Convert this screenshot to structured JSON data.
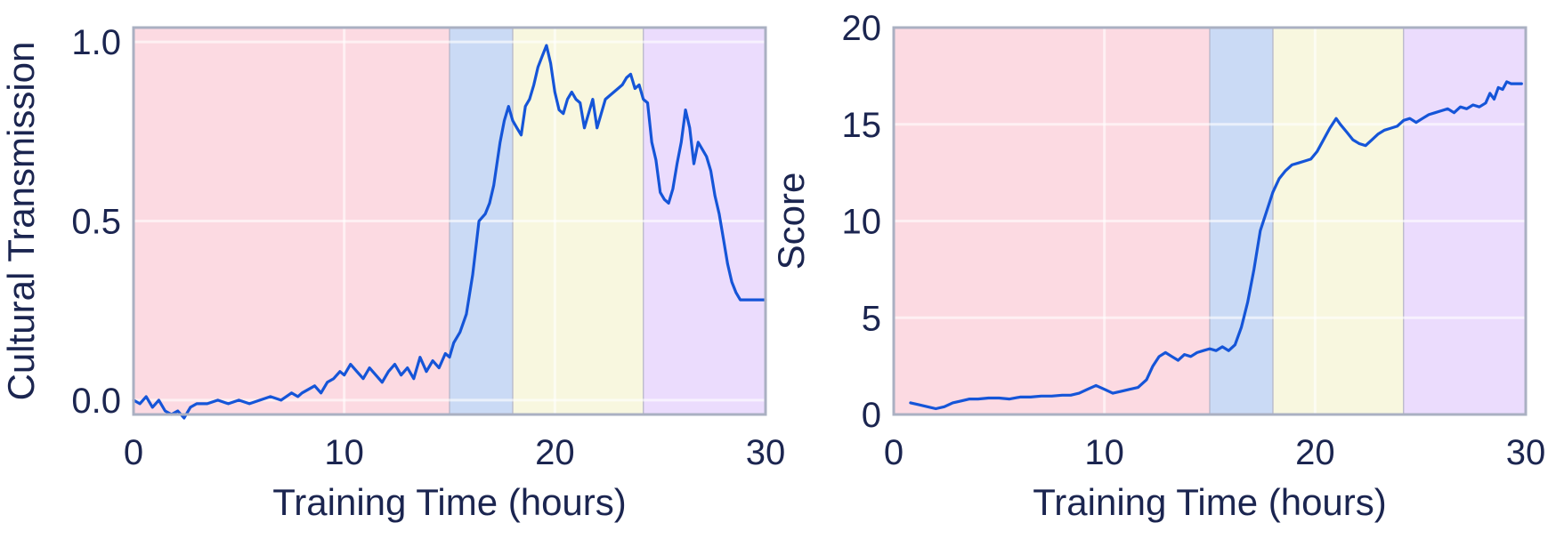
{
  "chart_data": [
    {
      "type": "line",
      "xlabel": "Training Time (hours)",
      "ylabel": "Cultural Transmission",
      "xlim": [
        0,
        30
      ],
      "ylim": [
        -0.04,
        1.04
      ],
      "xticks": [
        0,
        10,
        20,
        30
      ],
      "yticks": [
        0.0,
        0.5,
        1.0
      ],
      "xtick_labels": [
        "0",
        "10",
        "20",
        "30"
      ],
      "ytick_labels": [
        "0.0",
        "0.5",
        "1.0"
      ],
      "grid": true,
      "line_color": "#1555d8",
      "phases": [
        {
          "x0": 0,
          "x1": 15.0,
          "color": "#fcdae2"
        },
        {
          "x0": 15.0,
          "x1": 18.0,
          "color": "#cadaf5"
        },
        {
          "x0": 18.0,
          "x1": 24.2,
          "color": "#f8f7df"
        },
        {
          "x0": 24.2,
          "x1": 30,
          "color": "#ebdcfd"
        }
      ],
      "series": [
        {
          "x": [
            0,
            0.3,
            0.6,
            0.9,
            1.2,
            1.5,
            1.8,
            2.1,
            2.4,
            2.7,
            3.0,
            3.5,
            4.0,
            4.5,
            5.0,
            5.5,
            6.0,
            6.5,
            7.0,
            7.5,
            7.8,
            8.0,
            8.3,
            8.6,
            8.9,
            9.2,
            9.5,
            9.8,
            10.0,
            10.3,
            10.6,
            10.9,
            11.2,
            11.5,
            11.8,
            12.1,
            12.4,
            12.7,
            13.0,
            13.3,
            13.6,
            13.9,
            14.2,
            14.5,
            14.8,
            15.0,
            15.2,
            15.5,
            15.8,
            16.1,
            16.4,
            16.7,
            16.9,
            17.1,
            17.4,
            17.6,
            17.8,
            18.0,
            18.2,
            18.4,
            18.6,
            18.8,
            19.0,
            19.2,
            19.4,
            19.6,
            19.8,
            20.0,
            20.2,
            20.4,
            20.6,
            20.8,
            21.0,
            21.2,
            21.4,
            21.6,
            21.8,
            22.0,
            22.2,
            22.4,
            22.6,
            22.8,
            23.0,
            23.2,
            23.4,
            23.6,
            23.8,
            24.0,
            24.2,
            24.4,
            24.6,
            24.8,
            25.0,
            25.2,
            25.4,
            25.6,
            25.8,
            26.0,
            26.2,
            26.4,
            26.6,
            26.8,
            27.0,
            27.2,
            27.4,
            27.6,
            27.8,
            28.0,
            28.2,
            28.4,
            28.6,
            28.8,
            29.0,
            29.2,
            29.4,
            29.7,
            30.0
          ],
          "values": [
            0.0,
            -0.01,
            0.01,
            -0.02,
            0.0,
            -0.03,
            -0.04,
            -0.03,
            -0.05,
            -0.02,
            -0.01,
            -0.01,
            0.0,
            -0.01,
            0.0,
            -0.01,
            0.0,
            0.01,
            0.0,
            0.02,
            0.01,
            0.02,
            0.03,
            0.04,
            0.02,
            0.05,
            0.06,
            0.08,
            0.07,
            0.1,
            0.08,
            0.06,
            0.09,
            0.07,
            0.05,
            0.08,
            0.1,
            0.07,
            0.09,
            0.06,
            0.12,
            0.08,
            0.11,
            0.09,
            0.13,
            0.12,
            0.16,
            0.19,
            0.24,
            0.35,
            0.5,
            0.52,
            0.55,
            0.6,
            0.72,
            0.78,
            0.82,
            0.78,
            0.76,
            0.74,
            0.82,
            0.84,
            0.88,
            0.93,
            0.96,
            0.99,
            0.94,
            0.86,
            0.81,
            0.8,
            0.84,
            0.86,
            0.84,
            0.83,
            0.76,
            0.8,
            0.84,
            0.76,
            0.8,
            0.84,
            0.85,
            0.86,
            0.87,
            0.88,
            0.9,
            0.91,
            0.87,
            0.88,
            0.84,
            0.83,
            0.72,
            0.67,
            0.58,
            0.56,
            0.55,
            0.59,
            0.66,
            0.72,
            0.81,
            0.76,
            0.66,
            0.72,
            0.7,
            0.68,
            0.64,
            0.57,
            0.52,
            0.45,
            0.38,
            0.33,
            0.3,
            0.28,
            0.28,
            0.28,
            0.28,
            0.28,
            0.28
          ]
        }
      ]
    },
    {
      "type": "line",
      "xlabel": "Training Time (hours)",
      "ylabel": "Score",
      "xlim": [
        0,
        30
      ],
      "ylim": [
        0,
        20
      ],
      "xticks": [
        0,
        10,
        20,
        30
      ],
      "yticks": [
        0,
        5,
        10,
        15,
        20
      ],
      "xtick_labels": [
        "0",
        "10",
        "20",
        "30"
      ],
      "ytick_labels": [
        "0",
        "5",
        "10",
        "15",
        "20"
      ],
      "grid": true,
      "line_color": "#1555d8",
      "phases": [
        {
          "x0": 0,
          "x1": 15.0,
          "color": "#fcdae2"
        },
        {
          "x0": 15.0,
          "x1": 18.0,
          "color": "#cadaf5"
        },
        {
          "x0": 18.0,
          "x1": 24.2,
          "color": "#f8f7df"
        },
        {
          "x0": 24.2,
          "x1": 30,
          "color": "#ebdcfd"
        }
      ],
      "series": [
        {
          "x": [
            0.8,
            1.2,
            1.6,
            2.0,
            2.4,
            2.8,
            3.2,
            3.6,
            4.0,
            4.5,
            5.0,
            5.5,
            6.0,
            6.5,
            7.0,
            7.5,
            8.0,
            8.4,
            8.8,
            9.2,
            9.6,
            10.0,
            10.4,
            10.8,
            11.2,
            11.6,
            12.0,
            12.3,
            12.6,
            12.9,
            13.2,
            13.5,
            13.8,
            14.1,
            14.4,
            14.7,
            15.0,
            15.3,
            15.6,
            15.9,
            16.2,
            16.5,
            16.8,
            17.1,
            17.4,
            17.7,
            18.0,
            18.3,
            18.6,
            18.9,
            19.2,
            19.5,
            19.8,
            20.1,
            20.4,
            20.7,
            21.0,
            21.2,
            21.5,
            21.8,
            22.1,
            22.4,
            22.7,
            23.0,
            23.3,
            23.6,
            23.9,
            24.2,
            24.5,
            24.8,
            25.1,
            25.4,
            25.7,
            26.0,
            26.3,
            26.6,
            26.9,
            27.2,
            27.5,
            27.8,
            28.1,
            28.3,
            28.5,
            28.7,
            28.9,
            29.1,
            29.3,
            29.5,
            29.8
          ],
          "values": [
            0.6,
            0.5,
            0.4,
            0.3,
            0.4,
            0.6,
            0.7,
            0.8,
            0.8,
            0.85,
            0.85,
            0.8,
            0.9,
            0.9,
            0.95,
            0.95,
            1.0,
            1.0,
            1.1,
            1.3,
            1.5,
            1.3,
            1.1,
            1.2,
            1.3,
            1.4,
            1.8,
            2.5,
            3.0,
            3.2,
            3.0,
            2.8,
            3.1,
            3.0,
            3.2,
            3.3,
            3.4,
            3.3,
            3.5,
            3.3,
            3.6,
            4.5,
            5.8,
            7.5,
            9.5,
            10.5,
            11.5,
            12.2,
            12.6,
            12.9,
            13.0,
            13.1,
            13.2,
            13.6,
            14.2,
            14.8,
            15.3,
            15.0,
            14.6,
            14.2,
            14.0,
            13.9,
            14.2,
            14.5,
            14.7,
            14.8,
            14.9,
            15.2,
            15.3,
            15.1,
            15.3,
            15.5,
            15.6,
            15.7,
            15.8,
            15.6,
            15.9,
            15.8,
            16.0,
            15.9,
            16.1,
            16.6,
            16.3,
            16.9,
            16.8,
            17.2,
            17.1,
            17.1,
            17.1
          ]
        }
      ]
    }
  ]
}
